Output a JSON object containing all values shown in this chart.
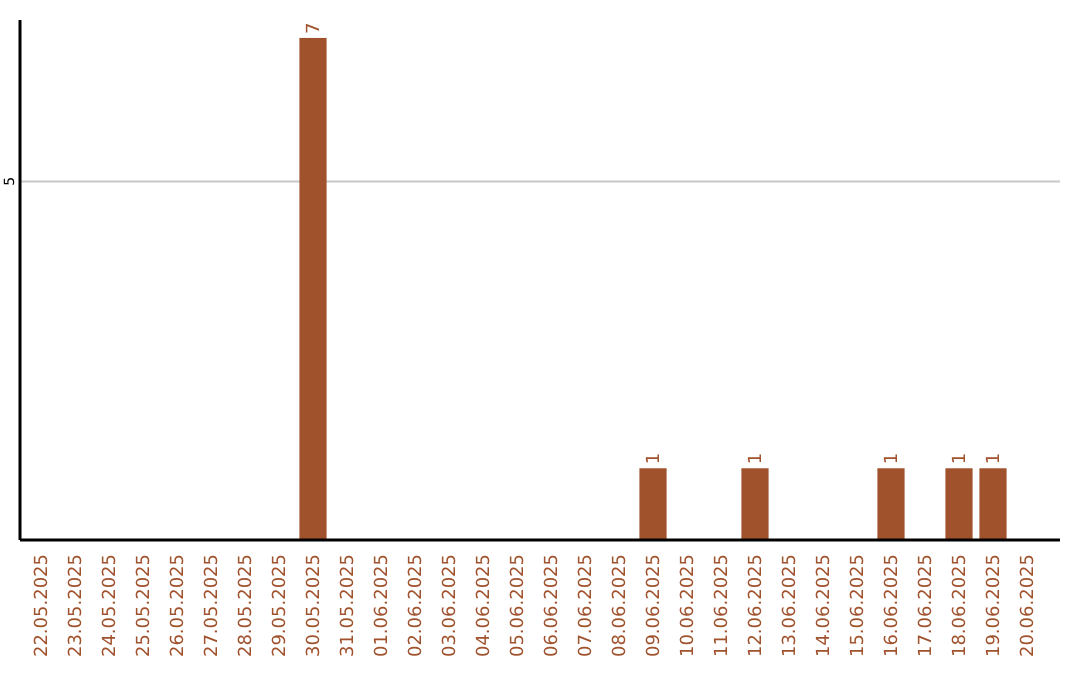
{
  "chart_data": {
    "type": "bar",
    "categories": [
      "22.05.2025",
      "23.05.2025",
      "24.05.2025",
      "25.05.2025",
      "26.05.2025",
      "27.05.2025",
      "28.05.2025",
      "29.05.2025",
      "30.05.2025",
      "31.05.2025",
      "01.06.2025",
      "02.06.2025",
      "03.06.2025",
      "04.06.2025",
      "05.06.2025",
      "06.06.2025",
      "07.06.2025",
      "08.06.2025",
      "09.06.2025",
      "10.06.2025",
      "11.06.2025",
      "12.06.2025",
      "13.06.2025",
      "14.06.2025",
      "15.06.2025",
      "16.06.2025",
      "17.06.2025",
      "18.06.2025",
      "19.06.2025",
      "20.06.2025"
    ],
    "values": [
      0,
      0,
      0,
      0,
      0,
      0,
      0,
      0,
      7,
      0,
      0,
      0,
      0,
      0,
      0,
      0,
      0,
      0,
      1,
      0,
      0,
      1,
      0,
      0,
      0,
      1,
      0,
      1,
      1,
      0
    ],
    "value_labels": [
      null,
      null,
      null,
      null,
      null,
      null,
      null,
      null,
      "7",
      null,
      null,
      null,
      null,
      null,
      null,
      null,
      null,
      null,
      "1",
      null,
      null,
      "1",
      null,
      null,
      null,
      "1",
      null,
      "1",
      "1",
      null
    ],
    "color": "#a0522d",
    "ylim": [
      0,
      7.25
    ],
    "yticks": [
      5
    ],
    "grid": "y"
  }
}
